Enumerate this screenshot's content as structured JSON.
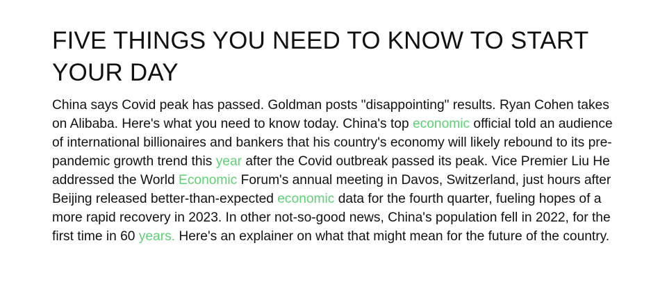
{
  "article": {
    "headline": "FIVE THINGS YOU NEED TO KNOW TO START YOUR DAY",
    "segments": [
      {
        "text": "China says Covid peak has passed. Goldman posts \"disappointing\" results. Ryan Cohen takes on Alibaba. Here's what you need to know today. China's top ",
        "highlight": false
      },
      {
        "text": "economic",
        "highlight": true
      },
      {
        "text": " official told an audience of international billionaires and bankers that his country's economy will likely rebound to its pre-pandemic growth trend this ",
        "highlight": false
      },
      {
        "text": "year",
        "highlight": true
      },
      {
        "text": " after the Covid outbreak passed its peak. Vice Premier Liu He addressed the World ",
        "highlight": false
      },
      {
        "text": "Economic",
        "highlight": true
      },
      {
        "text": " Forum's annual meeting in Davos, Switzerland, just hours after Beijing released better-than-expected ",
        "highlight": false
      },
      {
        "text": "economic",
        "highlight": true
      },
      {
        "text": " data for the fourth quarter, fueling hopes of a more rapid recovery in 2023. In other not-so-good news, China's population fell in 2022, for the first time in 60 ",
        "highlight": false
      },
      {
        "text": "years.",
        "highlight": true
      },
      {
        "text": " Here's an explainer on what that might mean for the future of the country.",
        "highlight": false
      }
    ]
  },
  "colors": {
    "text": "#111111",
    "highlight": "#5fd175",
    "background": "#ffffff"
  }
}
